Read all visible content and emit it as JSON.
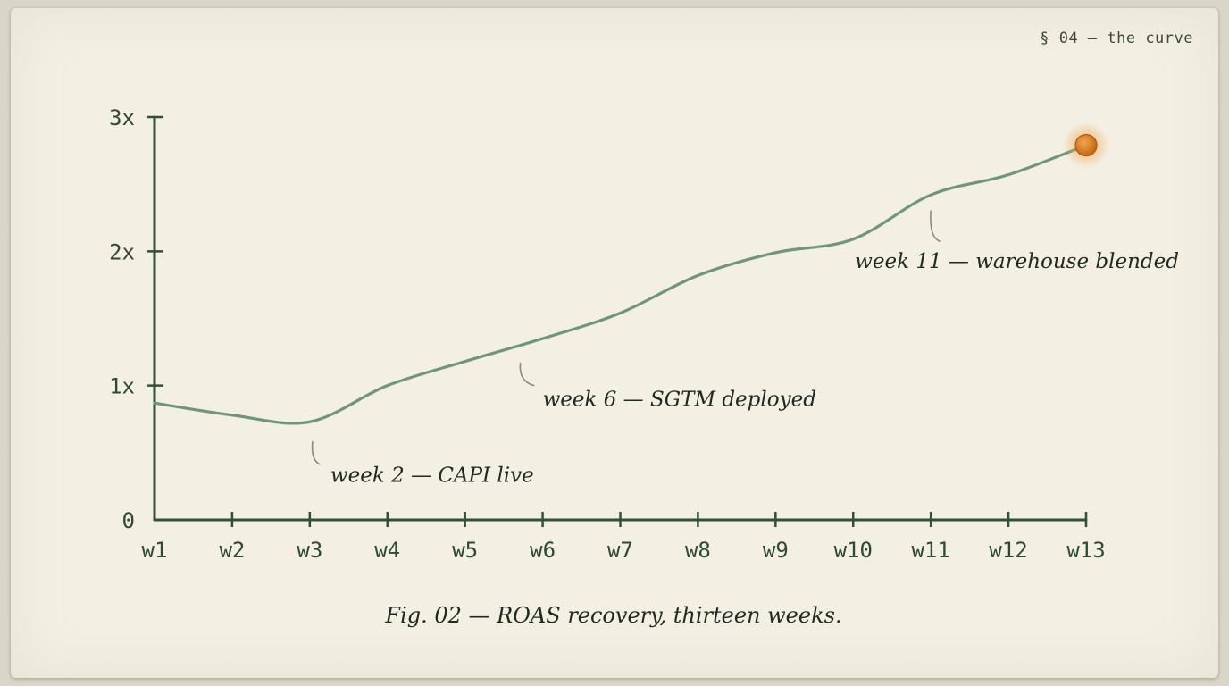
{
  "header": {
    "section": "§ 04 — the curve"
  },
  "colors": {
    "line": "#6f9775",
    "axis": "#2f5235",
    "endpoint": "#d47d1e"
  },
  "chart_data": {
    "type": "line",
    "title": "Fig. 02 — ROAS recovery, thirteen weeks.",
    "xlabel": "",
    "ylabel": "",
    "categories": [
      "w1",
      "w2",
      "w3",
      "w4",
      "w5",
      "w6",
      "w7",
      "w8",
      "w9",
      "w10",
      "w11",
      "w12",
      "w13"
    ],
    "y_ticks": [
      {
        "value": 0,
        "label": "0"
      },
      {
        "value": 1,
        "label": "1x"
      },
      {
        "value": 2,
        "label": "2x"
      },
      {
        "value": 3,
        "label": "3x"
      }
    ],
    "ylim": [
      0,
      3
    ],
    "series": [
      {
        "values": [
          0.87,
          0.78,
          0.73,
          1.0,
          1.18,
          1.35,
          1.54,
          1.82,
          1.99,
          2.09,
          2.42,
          2.57,
          2.79
        ]
      }
    ],
    "highlight_point": {
      "x": "w13",
      "y": 2.79
    },
    "annotations": [
      {
        "text": "week 2 — CAPI live",
        "x_index": 1,
        "y": 0.78
      },
      {
        "text": "week 6 — SGTM deployed",
        "x_index": 5,
        "y": 1.3
      },
      {
        "text": "week 11 — warehouse blended",
        "x_index": 10,
        "y": 2.42
      }
    ],
    "grid": false,
    "legend": "none"
  }
}
